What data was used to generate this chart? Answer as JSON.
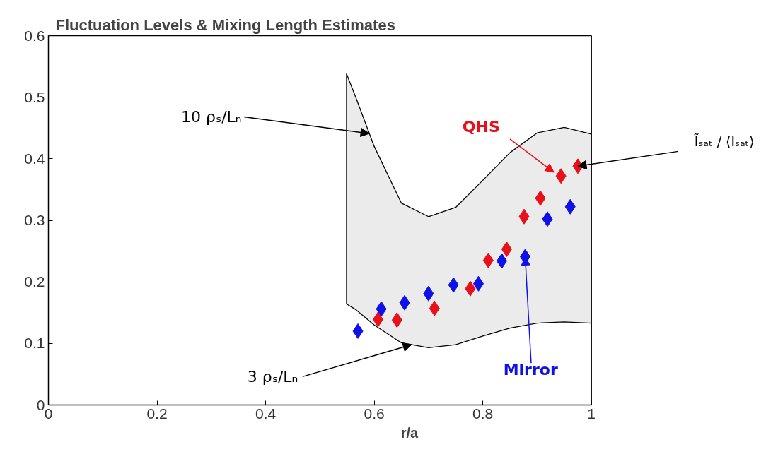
{
  "chart_data": {
    "type": "scatter",
    "title": "Fluctuation Levels & Mixing Length Estimates",
    "xlabel": "r/a",
    "xlim": [
      0,
      1
    ],
    "ylim": [
      0,
      0.6
    ],
    "xticks": [
      0,
      0.2,
      0.4,
      0.6,
      0.8,
      1
    ],
    "yticks": [
      0,
      0.1,
      0.2,
      0.3,
      0.4,
      0.5,
      0.6
    ],
    "grid": false,
    "marker": "diamond",
    "series": [
      {
        "type": "line",
        "marker": "none",
        "color": "#000000",
        "x": [
          0.549,
          0.566,
          0.6,
          0.65,
          0.7,
          0.75,
          0.8,
          0.85,
          0.9,
          0.95,
          1.0
        ],
        "values": [
          0.164,
          0.155,
          0.13,
          0.101,
          0.093,
          0.098,
          0.112,
          0.125,
          0.133,
          0.135,
          0.133
        ],
        "lower": [
          0.164,
          0.155,
          0.13,
          0.101,
          0.093,
          0.098,
          0.112,
          0.125,
          0.133,
          0.135,
          0.133
        ],
        "upper": [
          0.538,
          0.5,
          0.42,
          0.328,
          0.306,
          0.321,
          0.365,
          0.41,
          0.442,
          0.451,
          0.44
        ]
      },
      {
        "type": "line",
        "marker": "none",
        "color": "#000000",
        "x": [
          0.549,
          0.549,
          0.566,
          0.6,
          0.65,
          0.7,
          0.75,
          0.8,
          0.85,
          0.9,
          0.95,
          1.0
        ],
        "values": [
          0.164,
          0.538,
          0.5,
          0.42,
          0.328,
          0.306,
          0.321,
          0.365,
          0.41,
          0.442,
          0.451,
          0.44
        ]
      },
      {
        "color": "#e8101a",
        "x": [
          0.607,
          0.642,
          0.711,
          0.777,
          0.81,
          0.844,
          0.876,
          0.906,
          0.944,
          0.975
        ],
        "values": [
          0.139,
          0.138,
          0.157,
          0.189,
          0.235,
          0.253,
          0.306,
          0.336,
          0.372,
          0.388
        ]
      },
      {
        "color": "#1010e8",
        "x": [
          0.57,
          0.613,
          0.656,
          0.7,
          0.746,
          0.792,
          0.835,
          0.878,
          0.919,
          0.961
        ],
        "values": [
          0.12,
          0.156,
          0.166,
          0.181,
          0.195,
          0.197,
          0.234,
          0.241,
          0.302,
          0.322
        ]
      }
    ],
    "annotations": [
      {
        "text": "10 ρₛ/Lₙ",
        "x": 0.591,
        "y": 0.441
      },
      {
        "text": "3 ρₛ/Lₙ",
        "x": 0.669,
        "y": 0.098
      },
      {
        "text": "QHS",
        "x": 0.931,
        "y": 0.378
      },
      {
        "text": "Mirror",
        "x": 0.878,
        "y": 0.241
      },
      {
        "text": "Ĩₛₐₜ / ⟨Iₛₐₜ⟩",
        "x": 0.975,
        "y": 0.388
      }
    ]
  }
}
